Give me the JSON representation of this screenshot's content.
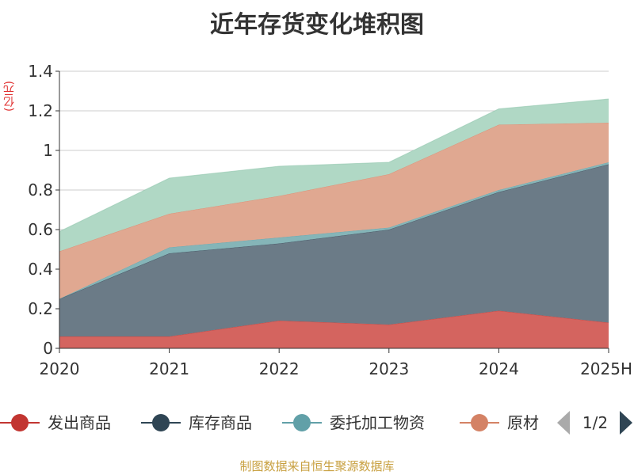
{
  "chart_data": {
    "type": "area",
    "title": "近年存货变化堆积图",
    "unit_label": "(亿元)",
    "categories": [
      "2020",
      "2021",
      "2022",
      "2023",
      "2024",
      "2025H"
    ],
    "ylim": [
      0,
      1.4
    ],
    "yticks": [
      "0",
      "0.2",
      "0.4",
      "0.6",
      "0.8",
      "1",
      "1.2",
      "1.4"
    ],
    "grid": true,
    "stacked": true,
    "series": [
      {
        "name": "发出商品",
        "color": "#d4645f",
        "legend_color": "#c23531",
        "values": [
          0.06,
          0.06,
          0.14,
          0.12,
          0.19,
          0.13
        ]
      },
      {
        "name": "库存商品",
        "color": "#6b7b87",
        "legend_color": "#2f4554",
        "values": [
          0.19,
          0.42,
          0.39,
          0.48,
          0.6,
          0.8
        ]
      },
      {
        "name": "委托加工物资",
        "color": "#85b5b8",
        "legend_color": "#61a0a8",
        "values": [
          0.0,
          0.03,
          0.03,
          0.01,
          0.01,
          0.01
        ]
      },
      {
        "name": "原材料",
        "color": "#e0a891",
        "legend_color": "#d48265",
        "values": [
          0.24,
          0.17,
          0.21,
          0.27,
          0.33,
          0.2
        ]
      },
      {
        "name": "",
        "color": "#b0d8c5",
        "legend_color": "#91c7ae",
        "values": [
          0.1,
          0.18,
          0.15,
          0.06,
          0.08,
          0.12
        ]
      }
    ],
    "legend": {
      "placement": "bottom",
      "visible_items": [
        "发出商品",
        "库存商品",
        "委托加工物资",
        "原材"
      ],
      "page_indicator": "1/2"
    }
  },
  "source_note": "制图数据来自恒生聚源数据库"
}
